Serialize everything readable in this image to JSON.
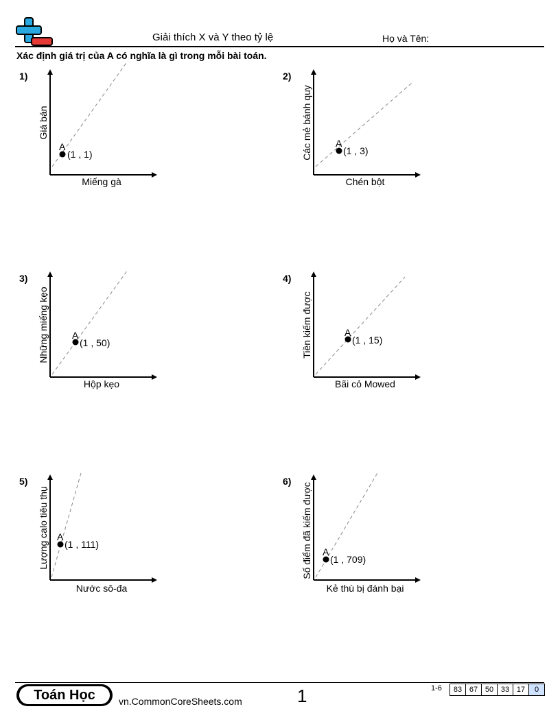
{
  "header": {
    "title": "Giải thích X và Y theo tỷ lệ",
    "name_label": "Họ và Tên:"
  },
  "instructions": "Xác định giá trị của A có nghĩa là gì trong mỗi bài toán.",
  "problems": [
    {
      "number": "1)",
      "y_label": "Giá bán",
      "x_label": "Miếng gà",
      "point_label": "A",
      "coords": "(1 , 1)"
    },
    {
      "number": "2)",
      "y_label": "Các mẻ bánh quy",
      "x_label": "Chén bột",
      "point_label": "A",
      "coords": "(1 , 3)"
    },
    {
      "number": "3)",
      "y_label": "Những miếng kẹo",
      "x_label": "Hộp kẹo",
      "point_label": "A",
      "coords": "(1 , 50)"
    },
    {
      "number": "4)",
      "y_label": "Tiền kiếm được",
      "x_label": "Bãi cỏ Mowed",
      "point_label": "A",
      "coords": "(1 , 15)"
    },
    {
      "number": "5)",
      "y_label": "Lượng calo tiêu thụ",
      "x_label": "Nước sô-đa",
      "point_label": "A",
      "coords": "(1 , 111)"
    },
    {
      "number": "6)",
      "y_label": "Số điểm đã kiếm được",
      "x_label": "Kẻ thù bị đánh bại",
      "point_label": "A",
      "coords": "(1 , 709)"
    }
  ],
  "footer": {
    "brand": "Toán Học",
    "site": "vn.CommonCoreSheets.com",
    "page_number": "1",
    "range": "1-6",
    "scores": [
      "83",
      "67",
      "50",
      "33",
      "17",
      "0"
    ]
  },
  "colors": {
    "logo_blue": "#2aa9e0",
    "logo_red": "#e53935",
    "score_highlight": "#cfe2ff"
  }
}
